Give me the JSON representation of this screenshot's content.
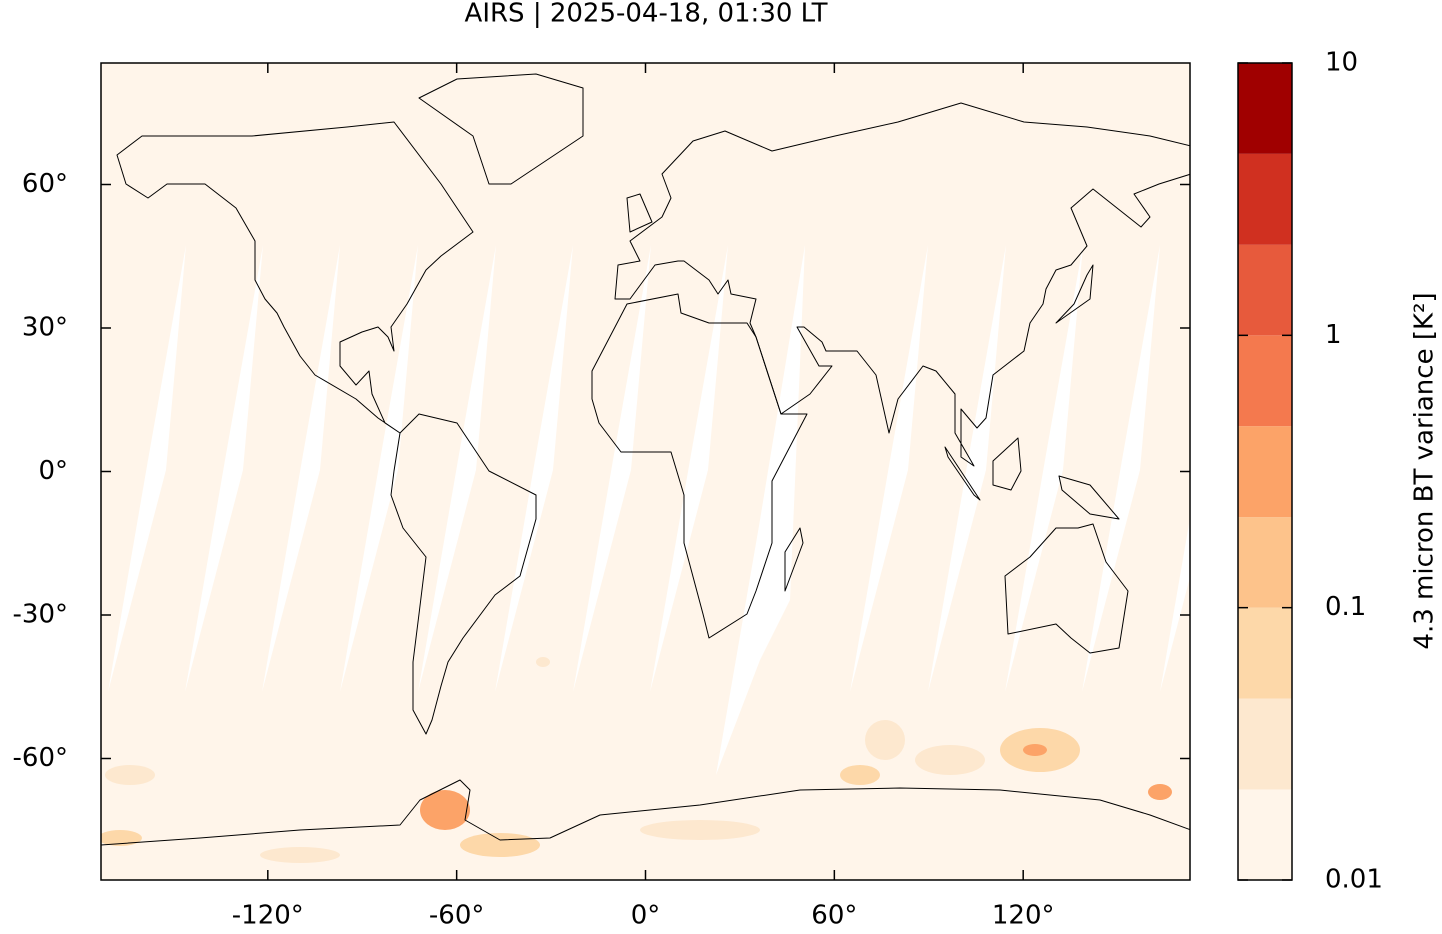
{
  "chart_data": {
    "type": "map",
    "title": "AIRS | 2025-04-18, 01:30 LT",
    "xlim": [
      -173,
      173
    ],
    "ylim": [
      -85.4,
      85.4
    ],
    "xticks": [
      {
        "value": -120,
        "label": "-120°"
      },
      {
        "value": -60,
        "label": "-60°"
      },
      {
        "value": 0,
        "label": "0°"
      },
      {
        "value": 60,
        "label": "60°"
      },
      {
        "value": 120,
        "label": "120°"
      }
    ],
    "yticks": [
      {
        "value": 60,
        "label": "60°"
      },
      {
        "value": 30,
        "label": "30°"
      },
      {
        "value": 0,
        "label": "0°"
      },
      {
        "value": -30,
        "label": "-30°"
      },
      {
        "value": -60,
        "label": "-60°"
      }
    ],
    "colorbar": {
      "label": "4.3 micron BT variance [K²]",
      "scale": "log",
      "lim": [
        0.01,
        10
      ],
      "ticks": [
        0.01,
        0.1,
        1,
        10
      ],
      "levels": [
        0.01,
        0.0215,
        0.0464,
        0.1,
        0.215,
        0.464,
        1,
        2.15,
        4.64,
        10
      ],
      "colors": [
        "#fff5ea",
        "#fde8cf",
        "#fdd8a9",
        "#fdc38b",
        "#fca368",
        "#f4794e",
        "#e75a3c",
        "#d03020",
        "#a00000"
      ]
    }
  }
}
